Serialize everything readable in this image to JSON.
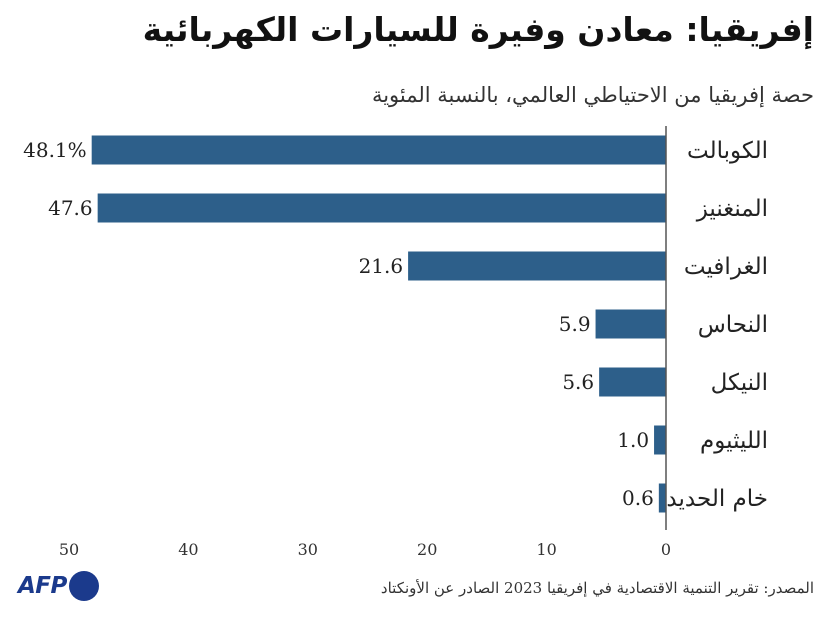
{
  "title": "إفريقيا: معادن وفيرة للسيارات الكهربائية",
  "subtitle": "حصة إفريقيا من الاحتياطي العالمي، بالنسبة المئوية",
  "source": "المصدر: تقرير التنمية الاقتصادية في إفريقيا 2023 الصادر عن الأونكتاد",
  "logo": {
    "text": "AFP",
    "color": "#1b3a8c"
  },
  "colors": {
    "bar": "#2d5f8a",
    "axis": "#555555"
  },
  "chart_data": {
    "type": "bar",
    "orientation": "horizontal",
    "direction": "rtl",
    "categories": [
      "الكوبالت",
      "المنغنيز",
      "الغرافيت",
      "النحاس",
      "النيكل",
      "الليثيوم",
      "خام الحديد"
    ],
    "values": [
      48.1,
      47.6,
      21.6,
      5.9,
      5.6,
      1.0,
      0.6
    ],
    "value_labels": [
      "48.1%",
      "47.6",
      "21.6",
      "5.9",
      "5.6",
      "1.0",
      "0.6"
    ],
    "xlim": [
      0,
      50
    ],
    "xticks": [
      0,
      10,
      20,
      30,
      40,
      50
    ],
    "title": "إفريقيا: معادن وفيرة للسيارات الكهربائية",
    "subtitle": "حصة إفريقيا من الاحتياطي العالمي، بالنسبة المئوية",
    "xlabel": "",
    "ylabel": "",
    "grid": false,
    "legend": "none"
  }
}
